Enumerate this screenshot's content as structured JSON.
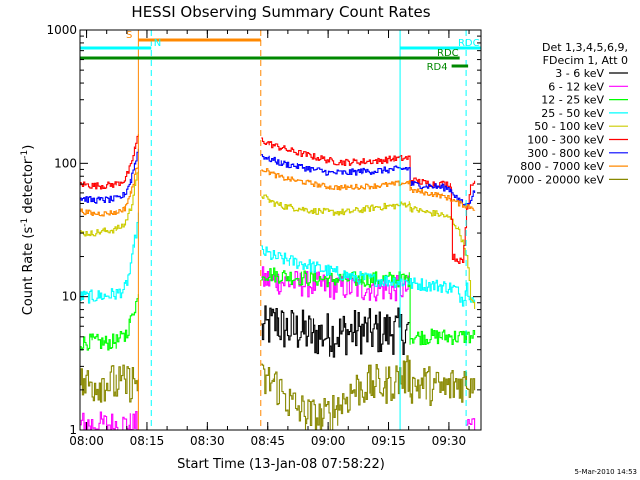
{
  "chart_data": {
    "type": "line",
    "title": "HESSI Observing Summary Count Rates",
    "xlabel": "Start Time (13-Jan-08 07:58:22)",
    "ylabel": "Count Rate (s⁻¹ detector⁻¹)",
    "ylabel_base": "Count Rate (s",
    "ylabel_sup1": "-1",
    "ylabel_mid": " detector",
    "ylabel_sup2": "-1",
    "ylabel_end": ")",
    "y_scale": "log",
    "xlim_min": [
      0,
      99.6
    ],
    "ylim": [
      1,
      1000
    ],
    "x_ticks": [
      {
        "m": 1.63,
        "label": "08:00"
      },
      {
        "m": 16.63,
        "label": "08:15"
      },
      {
        "m": 31.63,
        "label": "08:30"
      },
      {
        "m": 46.63,
        "label": "08:45"
      },
      {
        "m": 61.63,
        "label": "09:00"
      },
      {
        "m": 76.63,
        "label": "09:15"
      },
      {
        "m": 91.63,
        "label": "09:30"
      }
    ],
    "y_ticks": [
      {
        "v": 1,
        "label": "1"
      },
      {
        "v": 10,
        "label": "10"
      },
      {
        "v": 100,
        "label": "100"
      },
      {
        "v": 1000,
        "label": "1000"
      }
    ],
    "legend_header": [
      "Det 1,3,4,5,6,9,",
      "FDecim 1, Att 0"
    ],
    "legend_position": "right",
    "series": [
      {
        "name": "3 - 6 keV",
        "color": "#000000",
        "x": [
          0,
          14.5,
          14.6,
          44.9,
          45.0,
          49,
          50,
          54,
          58,
          62,
          66,
          70,
          74,
          78,
          81.8,
          81.9,
          99.6
        ],
        "y": [
          null,
          null,
          null,
          null,
          5.5,
          6.5,
          5.8,
          5.5,
          5.2,
          5.2,
          5.4,
          5.5,
          5.4,
          5.5,
          5.5,
          null,
          null
        ],
        "noise": 0.35
      },
      {
        "name": "6 - 12 keV",
        "color": "#ff00ff",
        "x": [
          0,
          1,
          12.5,
          14.5,
          14.6,
          44.9,
          45.0,
          49,
          55,
          62,
          70,
          78,
          81.8,
          82.5,
          86,
          88.5,
          96,
          98
        ],
        "y": [
          1.1,
          1.1,
          1.1,
          1.1,
          null,
          null,
          13.5,
          13.0,
          12.5,
          12.0,
          11.5,
          11.5,
          11.5,
          null,
          1.05,
          null,
          1.1,
          1.1
        ],
        "noise": 0.2
      },
      {
        "name": "12 - 25 keV",
        "color": "#00ff00",
        "x": [
          0,
          3,
          6,
          9,
          11,
          12.5,
          13.5,
          14.5,
          14.6,
          44.9,
          45.0,
          49,
          55,
          62,
          70,
          78,
          81.8,
          82,
          86,
          90,
          93,
          96,
          98
        ],
        "y": [
          4.5,
          4.6,
          4.5,
          4.6,
          5.0,
          6.5,
          8.5,
          10,
          null,
          null,
          15,
          14.5,
          13.8,
          13.5,
          13.5,
          13.5,
          13.5,
          5.0,
          5.0,
          5.0,
          5.0,
          5.0,
          5.0
        ],
        "noise": 0.12
      },
      {
        "name": "25 - 50 keV",
        "color": "#00ffff",
        "x": [
          0,
          3,
          6,
          9,
          11,
          12.5,
          13.5,
          14.5,
          14.6,
          44.9,
          45.0,
          48,
          52,
          56,
          60,
          64,
          68,
          72,
          76,
          80,
          81.8,
          82,
          86,
          90,
          93,
          95,
          96,
          97,
          98
        ],
        "y": [
          10,
          10,
          10.2,
          10.5,
          11.5,
          16,
          26,
          40,
          null,
          null,
          22,
          20,
          18.5,
          17.5,
          16,
          15,
          14,
          13.5,
          13.2,
          13,
          13,
          12.5,
          12.3,
          12,
          11.5,
          9.5,
          12,
          10,
          9
        ],
        "noise": 0.1
      },
      {
        "name": "50 - 100 keV",
        "color": "#cccc00",
        "x": [
          0,
          3,
          6,
          9,
          11,
          12.5,
          13.5,
          14.5,
          14.6,
          44.9,
          45.0,
          47,
          50,
          54,
          58,
          62,
          66,
          70,
          74,
          78,
          81.8,
          82,
          84,
          86,
          88,
          90,
          92,
          94,
          96,
          97,
          98
        ],
        "y": [
          30,
          30,
          31,
          32,
          35,
          46,
          65,
          90,
          null,
          null,
          58,
          52,
          48,
          46,
          44,
          43,
          43,
          45,
          47,
          48,
          50,
          46,
          44,
          43,
          42,
          41,
          38,
          32,
          20,
          10,
          8
        ],
        "noise": 0.05
      },
      {
        "name": "100 - 300 keV",
        "color": "#ff0000",
        "x": [
          0,
          3,
          6,
          9,
          11,
          12.5,
          13.5,
          14.5,
          14.6,
          44.9,
          45.0,
          47,
          50,
          54,
          58,
          62,
          64,
          66,
          70,
          74,
          78,
          81.8,
          82,
          85,
          88,
          90,
          92,
          92.5,
          95,
          96,
          97,
          98
        ],
        "y": [
          70,
          68,
          68,
          70,
          75,
          95,
          130,
          165,
          null,
          null,
          150,
          140,
          130,
          120,
          112,
          105,
          102,
          102,
          103,
          105,
          108,
          110,
          75,
          72,
          70,
          70,
          70,
          20,
          18,
          45,
          70,
          75
        ],
        "noise": 0.05
      },
      {
        "name": "300 - 800 keV",
        "color": "#0000ff",
        "x": [
          0,
          3,
          6,
          9,
          11,
          12.5,
          13.5,
          14.5,
          14.6,
          44.9,
          45.0,
          47,
          50,
          54,
          58,
          62,
          66,
          70,
          74,
          78,
          81.8,
          82,
          86,
          90,
          92,
          94,
          96,
          97,
          98
        ],
        "y": [
          55,
          53,
          53,
          54,
          58,
          75,
          100,
          130,
          null,
          null,
          115,
          108,
          100,
          95,
          90,
          85,
          85,
          87,
          88,
          90,
          92,
          70,
          68,
          66,
          64,
          52,
          48,
          55,
          62
        ],
        "noise": 0.05
      },
      {
        "name": "800 - 7000 keV",
        "color": "#ff8800",
        "x": [
          0,
          3,
          6,
          9,
          11,
          12.5,
          13.5,
          14.5,
          14.6,
          44.9,
          45.0,
          47,
          50,
          54,
          58,
          62,
          66,
          70,
          74,
          78,
          81.8,
          82,
          86,
          90,
          92,
          94,
          96,
          98
        ],
        "y": [
          44,
          42,
          42,
          43,
          46,
          60,
          80,
          105,
          null,
          null,
          92,
          85,
          78,
          74,
          70,
          66,
          66,
          67,
          68,
          70,
          72,
          63,
          60,
          57,
          54,
          50,
          48,
          46
        ],
        "noise": 0.04
      },
      {
        "name": "7000 - 20000 keV",
        "color": "#888800",
        "x": [
          0,
          3,
          6,
          9,
          11,
          13,
          14.5,
          14.6,
          44.9,
          45.0,
          48,
          52,
          56,
          60,
          64,
          68,
          72,
          76,
          80,
          81.8,
          82,
          86,
          90,
          93,
          96,
          98
        ],
        "y": [
          2.2,
          2.2,
          2.3,
          2.2,
          2.2,
          2.3,
          2.3,
          null,
          null,
          2.3,
          2.3,
          1.6,
          1.3,
          1.2,
          1.5,
          2.0,
          2.2,
          2.2,
          2.5,
          2.6,
          2.2,
          2.2,
          2.0,
          2.2,
          2.3,
          2.4
        ],
        "noise": 0.3
      }
    ],
    "flags": [
      {
        "label": "S",
        "color": "#ff8800",
        "x_start": 14.5,
        "x_end": 44.9,
        "label_side": "left"
      },
      {
        "label": "N",
        "color": "#00ffff",
        "x_start": 0.1,
        "x_end": 17.7,
        "label_side": "left"
      },
      {
        "label": "RDC",
        "color": "#00ffff",
        "x_start": 79.5,
        "x_end": 99.5,
        "label_side": "right"
      },
      {
        "label": "RDC",
        "color": "#008800",
        "x_start": 0.1,
        "x_end": 94.3,
        "label_side": "right"
      },
      {
        "label": "RD4",
        "color": "#008800",
        "x_start": 92.3,
        "x_end": 96.4,
        "label_side": "left"
      }
    ],
    "vlines": [
      {
        "x": 14.5,
        "color": "#ff8800",
        "style": "solid"
      },
      {
        "x": 17.7,
        "color": "#00ffff",
        "style": "dashed"
      },
      {
        "x": 44.9,
        "color": "#ff8800",
        "style": "dashed"
      },
      {
        "x": 79.5,
        "color": "#00ffff",
        "style": "solid"
      },
      {
        "x": 95.9,
        "color": "#00ffff",
        "style": "dashed"
      }
    ],
    "grid": false
  },
  "footer": {
    "timestamp": "5-Mar-2010 14:53"
  }
}
